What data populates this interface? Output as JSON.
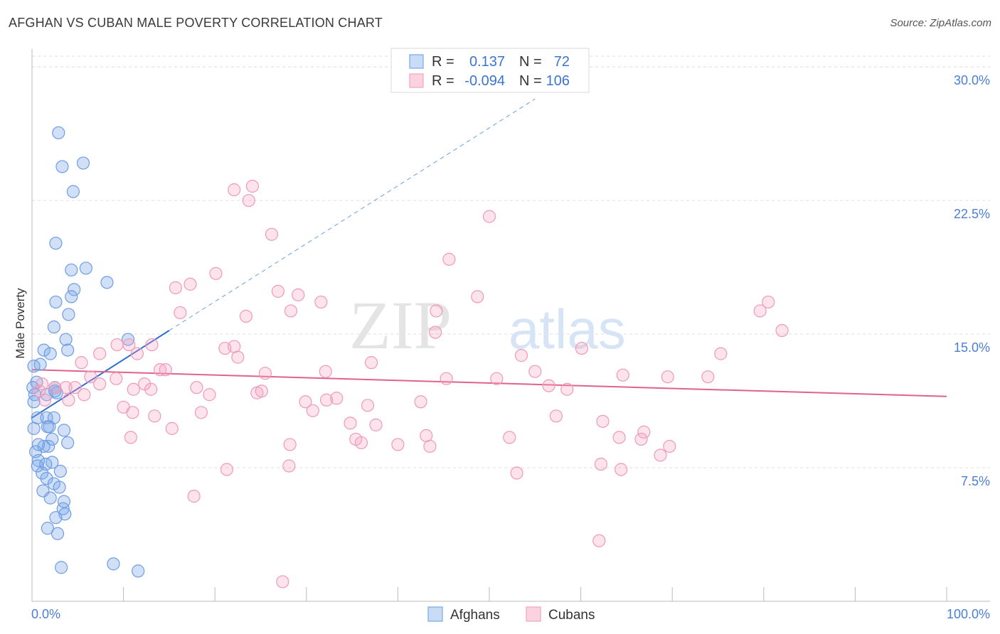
{
  "title": "AFGHAN VS CUBAN MALE POVERTY CORRELATION CHART",
  "source": "Source: ZipAtlas.com",
  "watermark": {
    "zip": "ZIP",
    "atlas": "atlas"
  },
  "chart_data": {
    "type": "scatter",
    "title": "AFGHAN VS CUBAN MALE POVERTY CORRELATION CHART",
    "xlabel": "",
    "ylabel": "Male Poverty",
    "xlim": [
      0,
      100
    ],
    "ylim": [
      0,
      31
    ],
    "x_tick_labels": [
      {
        "value": 0,
        "label": "0.0%"
      },
      {
        "value": 100,
        "label": "100.0%"
      }
    ],
    "y_ticks": [
      {
        "value": 7.5,
        "label": "7.5%"
      },
      {
        "value": 15,
        "label": "15.0%"
      },
      {
        "value": 22.5,
        "label": "22.5%"
      },
      {
        "value": 30,
        "label": "30.0%"
      }
    ],
    "legend": [
      {
        "name": "Afghans",
        "r_label": "R =",
        "r": "0.137",
        "n_label": "N =",
        "n": "72",
        "color": "#7aa7e8",
        "line": "#2f6fd0"
      },
      {
        "name": "Cubans",
        "r_label": "R =",
        "r": "-0.094",
        "n_label": "N =",
        "n": "106",
        "color": "#f4a3bf",
        "line": "#e0628f"
      }
    ],
    "series": [
      {
        "name": "Afghans",
        "trend": {
          "x0": 0,
          "y0": 10.3,
          "x1": 15,
          "y1": 15.2,
          "dash_to": {
            "x": 55,
            "y": 28.2
          }
        },
        "points": [
          [
            2.9,
            26.3
          ],
          [
            3.3,
            24.4
          ],
          [
            5.6,
            24.6
          ],
          [
            4.5,
            23.0
          ],
          [
            2.6,
            20.1
          ],
          [
            4.3,
            18.6
          ],
          [
            5.9,
            18.7
          ],
          [
            8.2,
            17.9
          ],
          [
            4.6,
            17.5
          ],
          [
            4.3,
            17.1
          ],
          [
            2.6,
            16.8
          ],
          [
            4.0,
            16.1
          ],
          [
            2.4,
            15.4
          ],
          [
            3.7,
            14.7
          ],
          [
            10.5,
            14.7
          ],
          [
            1.3,
            14.1
          ],
          [
            3.9,
            14.1
          ],
          [
            2.0,
            13.9
          ],
          [
            0.9,
            13.3
          ],
          [
            0.2,
            13.2
          ],
          [
            0.5,
            12.3
          ],
          [
            0.1,
            12.0
          ],
          [
            2.5,
            12.0
          ],
          [
            2.7,
            11.7
          ],
          [
            0.3,
            11.6
          ],
          [
            1.6,
            11.6
          ],
          [
            2.5,
            11.8
          ],
          [
            0.2,
            11.2
          ],
          [
            0.6,
            10.3
          ],
          [
            1.6,
            10.3
          ],
          [
            2.4,
            10.3
          ],
          [
            0.2,
            9.7
          ],
          [
            1.7,
            9.8
          ],
          [
            1.9,
            9.8
          ],
          [
            3.5,
            9.6
          ],
          [
            2.2,
            9.1
          ],
          [
            1.3,
            8.7
          ],
          [
            3.9,
            8.9
          ],
          [
            1.8,
            8.7
          ],
          [
            0.7,
            8.8
          ],
          [
            0.4,
            8.4
          ],
          [
            0.7,
            7.9
          ],
          [
            2.2,
            7.8
          ],
          [
            0.6,
            7.6
          ],
          [
            1.5,
            7.7
          ],
          [
            3.1,
            7.3
          ],
          [
            1.1,
            7.2
          ],
          [
            1.6,
            6.9
          ],
          [
            2.4,
            6.6
          ],
          [
            3.0,
            6.4
          ],
          [
            1.2,
            6.2
          ],
          [
            2.0,
            5.8
          ],
          [
            3.5,
            5.6
          ],
          [
            3.4,
            5.2
          ],
          [
            3.6,
            4.9
          ],
          [
            2.6,
            4.7
          ],
          [
            1.7,
            4.1
          ],
          [
            2.8,
            3.8
          ],
          [
            3.2,
            1.9
          ],
          [
            8.9,
            2.1
          ],
          [
            11.6,
            1.7
          ]
        ]
      },
      {
        "name": "Cubans",
        "trend": {
          "x0": 0,
          "y0": 13.0,
          "x1": 100,
          "y1": 11.5
        },
        "points": [
          [
            22.1,
            23.1
          ],
          [
            24.1,
            23.3
          ],
          [
            23.7,
            22.5
          ],
          [
            50.0,
            21.6
          ],
          [
            26.2,
            20.6
          ],
          [
            45.6,
            19.2
          ],
          [
            20.1,
            18.4
          ],
          [
            17.3,
            17.8
          ],
          [
            15.7,
            17.6
          ],
          [
            26.9,
            17.4
          ],
          [
            29.1,
            17.2
          ],
          [
            48.7,
            17.1
          ],
          [
            31.6,
            16.8
          ],
          [
            80.5,
            16.8
          ],
          [
            79.6,
            16.3
          ],
          [
            16.2,
            16.2
          ],
          [
            28.3,
            16.3
          ],
          [
            23.4,
            16.0
          ],
          [
            44.2,
            16.3
          ],
          [
            82.0,
            15.2
          ],
          [
            44.1,
            15.1
          ],
          [
            13.1,
            14.4
          ],
          [
            9.3,
            14.4
          ],
          [
            10.6,
            14.4
          ],
          [
            21.1,
            14.2
          ],
          [
            22.1,
            14.3
          ],
          [
            60.1,
            14.2
          ],
          [
            11.5,
            13.9
          ],
          [
            7.4,
            13.9
          ],
          [
            53.5,
            13.8
          ],
          [
            75.3,
            13.9
          ],
          [
            22.5,
            13.7
          ],
          [
            37.1,
            13.4
          ],
          [
            5.4,
            13.4
          ],
          [
            14.0,
            13.0
          ],
          [
            14.6,
            13.0
          ],
          [
            25.5,
            12.8
          ],
          [
            32.1,
            12.9
          ],
          [
            9.2,
            12.5
          ],
          [
            55.0,
            12.9
          ],
          [
            64.6,
            12.7
          ],
          [
            69.5,
            12.6
          ],
          [
            73.9,
            12.6
          ],
          [
            6.4,
            12.6
          ],
          [
            12.3,
            12.2
          ],
          [
            13.0,
            11.9
          ],
          [
            18.0,
            12.0
          ],
          [
            3.7,
            12.0
          ],
          [
            4.7,
            12.0
          ],
          [
            11.1,
            11.9
          ],
          [
            1.1,
            12.2
          ],
          [
            2.5,
            12.0
          ],
          [
            7.4,
            12.2
          ],
          [
            45.3,
            12.5
          ],
          [
            50.8,
            12.5
          ],
          [
            56.5,
            12.1
          ],
          [
            58.5,
            11.9
          ],
          [
            0.8,
            11.8
          ],
          [
            19.4,
            11.6
          ],
          [
            24.6,
            11.7
          ],
          [
            25.1,
            11.8
          ],
          [
            5.7,
            11.6
          ],
          [
            1.4,
            11.3
          ],
          [
            4.0,
            11.3
          ],
          [
            29.9,
            11.2
          ],
          [
            32.2,
            11.3
          ],
          [
            33.3,
            11.4
          ],
          [
            36.7,
            11.0
          ],
          [
            42.5,
            11.2
          ],
          [
            10.0,
            10.9
          ],
          [
            18.5,
            10.6
          ],
          [
            30.7,
            10.7
          ],
          [
            11.0,
            10.6
          ],
          [
            13.4,
            10.4
          ],
          [
            57.3,
            10.4
          ],
          [
            34.8,
            10.0
          ],
          [
            37.6,
            9.9
          ],
          [
            62.4,
            10.1
          ],
          [
            15.3,
            9.7
          ],
          [
            66.9,
            9.5
          ],
          [
            10.8,
            9.2
          ],
          [
            35.4,
            9.1
          ],
          [
            36.0,
            8.9
          ],
          [
            43.1,
            9.3
          ],
          [
            52.2,
            9.2
          ],
          [
            64.2,
            9.2
          ],
          [
            66.6,
            9.1
          ],
          [
            28.2,
            8.8
          ],
          [
            40.0,
            8.8
          ],
          [
            43.5,
            8.7
          ],
          [
            69.7,
            8.7
          ],
          [
            68.7,
            8.2
          ],
          [
            62.2,
            7.7
          ],
          [
            21.3,
            7.4
          ],
          [
            28.1,
            7.6
          ],
          [
            53.0,
            7.2
          ],
          [
            64.4,
            7.4
          ],
          [
            17.7,
            5.9
          ],
          [
            62.0,
            3.4
          ],
          [
            27.4,
            1.1
          ]
        ]
      }
    ]
  }
}
